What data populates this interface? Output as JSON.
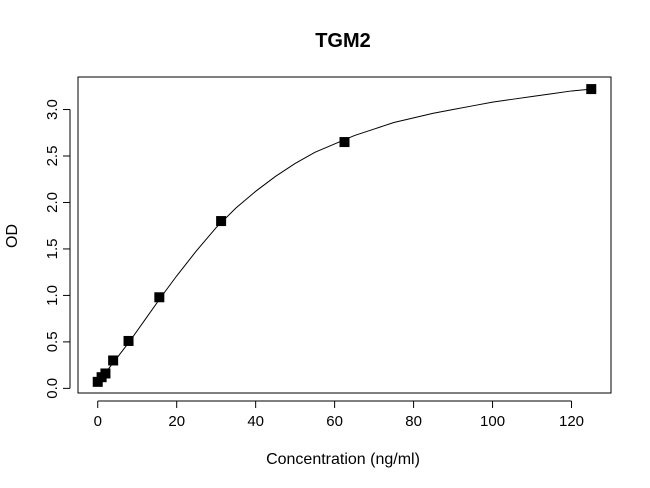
{
  "chart_data": {
    "type": "scatter",
    "title": "TGM2",
    "xlabel": "Concentration (ng/ml)",
    "ylabel": "OD",
    "xlim": [
      -5,
      130
    ],
    "ylim": [
      -0.05,
      3.35
    ],
    "x_ticks": [
      0,
      20,
      40,
      60,
      80,
      100,
      120
    ],
    "y_ticks": [
      0.0,
      0.5,
      1.0,
      1.5,
      2.0,
      2.5,
      3.0
    ],
    "x_tick_labels": [
      "0",
      "20",
      "40",
      "60",
      "80",
      "100",
      "120"
    ],
    "y_tick_labels": [
      "0.0",
      "0.5",
      "1.0",
      "1.5",
      "2.0",
      "2.5",
      "3.0"
    ],
    "grid": false,
    "legend": "none",
    "marker": "filled-square",
    "marker_color": "#000000",
    "line_color": "#000000",
    "series": [
      {
        "x": [
          0,
          0.98,
          1.95,
          3.9,
          7.8,
          15.6,
          31.25,
          62.5,
          125
        ],
        "y": [
          0.07,
          0.12,
          0.16,
          0.3,
          0.51,
          0.98,
          1.8,
          2.65,
          3.22
        ]
      }
    ],
    "fit_curve": {
      "x": [
        0,
        2,
        4,
        8,
        12,
        16,
        20,
        25,
        30,
        35,
        40,
        45,
        50,
        55,
        60,
        65,
        70,
        75,
        80,
        85,
        90,
        95,
        100,
        105,
        110,
        115,
        120,
        125
      ],
      "y": [
        0.08,
        0.17,
        0.28,
        0.5,
        0.74,
        0.98,
        1.21,
        1.48,
        1.73,
        1.94,
        2.12,
        2.28,
        2.42,
        2.54,
        2.63,
        2.72,
        2.79,
        2.86,
        2.91,
        2.96,
        3.0,
        3.04,
        3.08,
        3.11,
        3.14,
        3.17,
        3.2,
        3.22
      ]
    }
  }
}
